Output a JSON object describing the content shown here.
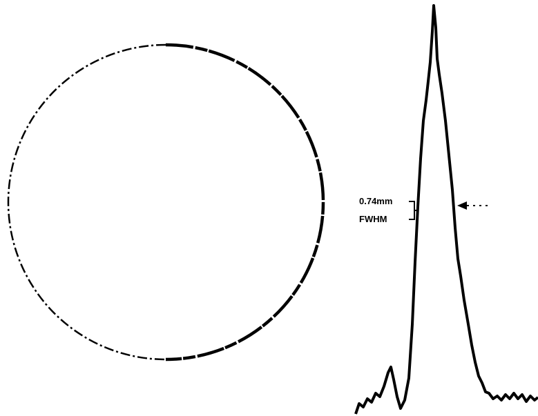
{
  "annotation": {
    "width": "0.74mm",
    "measure": "FWHM"
  }
}
